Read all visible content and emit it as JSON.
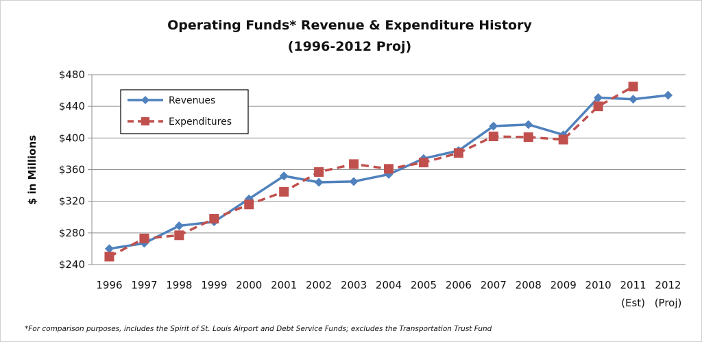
{
  "chart_data": {
    "type": "line",
    "title": "Operating Funds* Revenue & Expenditure History",
    "subtitle": "(1996-2012 Proj)",
    "xlabel": "",
    "ylabel": "$ in Millions",
    "categories": [
      "1996",
      "1997",
      "1998",
      "1999",
      "2000",
      "2001",
      "2002",
      "2003",
      "2004",
      "2005",
      "2006",
      "2007",
      "2008",
      "2009",
      "2010",
      "2011",
      "2012"
    ],
    "category_sublabels": [
      "",
      "",
      "",
      "",
      "",
      "",
      "",
      "",
      "",
      "",
      "",
      "",
      "",
      "",
      "",
      "(Est)",
      "(Proj)"
    ],
    "ylim": [
      240,
      480
    ],
    "yticks": [
      240,
      280,
      320,
      360,
      400,
      440,
      480
    ],
    "ytick_labels": [
      "$240",
      "$280",
      "$320",
      "$360",
      "$400",
      "$440",
      "$480"
    ],
    "grid": true,
    "legend_position": "top-left",
    "series": [
      {
        "name": "Revenues",
        "color": "#4f81bd",
        "style": "solid",
        "marker": "diamond",
        "values": [
          260,
          267,
          289,
          294,
          323,
          352,
          344,
          345,
          354,
          374,
          384,
          415,
          417,
          404,
          451,
          449,
          454
        ]
      },
      {
        "name": "Expenditures",
        "color": "#c0504d",
        "style": "dashed",
        "marker": "square",
        "values": [
          250,
          273,
          277,
          298,
          316,
          332,
          357,
          367,
          361,
          369,
          381,
          402,
          401,
          398,
          440,
          465,
          null
        ]
      }
    ],
    "footnote": "*For comparison purposes, includes the Spirit of St. Louis Airport and Debt Service Funds; excludes the Transportation Trust Fund"
  }
}
